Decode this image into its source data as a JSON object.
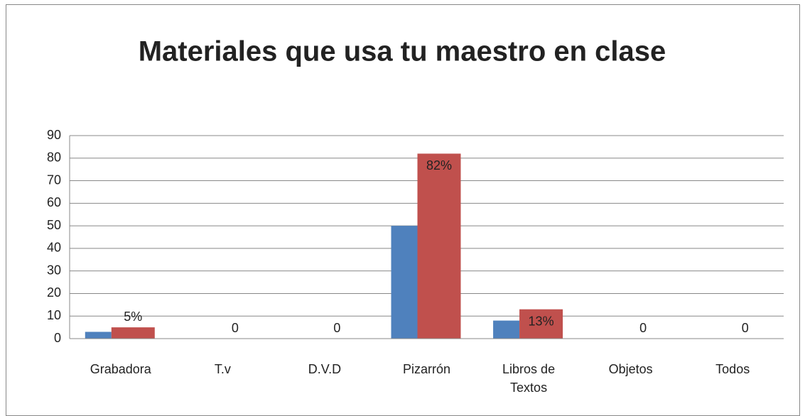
{
  "chart_data": {
    "type": "bar",
    "title": "Materiales que usa tu maestro en clase",
    "categories": [
      "Grabadora",
      "T.v",
      "D.V.D",
      "Pizarrón",
      "Libros de Textos",
      "Objetos",
      "Todos"
    ],
    "series": [
      {
        "color": "#4f81bd",
        "values": [
          3,
          0,
          0,
          50,
          8,
          0,
          0
        ]
      },
      {
        "color": "#c0504d",
        "values": [
          5,
          0,
          0,
          82,
          13,
          0,
          0
        ],
        "value_labels": [
          "5%",
          "0",
          "0",
          "82%",
          "13%",
          "0",
          "0"
        ]
      }
    ],
    "ylim": [
      0,
      90
    ],
    "yticks": [
      0,
      10,
      20,
      30,
      40,
      50,
      60,
      70,
      80,
      90
    ],
    "grid": true
  }
}
